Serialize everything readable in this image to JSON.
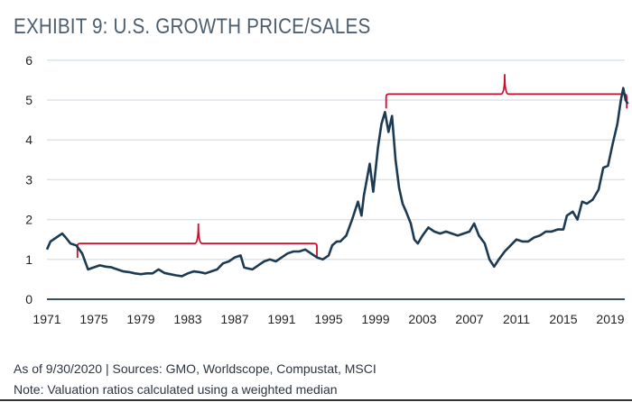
{
  "title": "EXHIBIT 9: U.S. GROWTH PRICE/SALES",
  "footer": {
    "sources": "As of 9/30/2020 | Sources: GMO, Worldscope, Compustat, MSCI",
    "note": "Note: Valuation ratios calculated using a weighted median"
  },
  "colors": {
    "line": "#1c3a52",
    "bracket": "#c8102e",
    "grid": "#dde3ea",
    "axis": "#3a4f63"
  },
  "chart_data": {
    "type": "line",
    "title": "EXHIBIT 9: U.S. GROWTH PRICE/SALES",
    "xlabel": "",
    "ylabel": "",
    "xlim": [
      1971,
      2020.5
    ],
    "ylim": [
      0,
      6
    ],
    "grid": "horizontal",
    "yticks": [
      "0",
      "1",
      "2",
      "3",
      "4",
      "5",
      "6"
    ],
    "xticks": [
      "1971",
      "1975",
      "1979",
      "1983",
      "1987",
      "1991",
      "1995",
      "1999",
      "2003",
      "2007",
      "2011",
      "2015",
      "2019"
    ],
    "series": [
      {
        "x": [
          1971.0,
          1971.3,
          1971.8,
          1972.3,
          1972.6,
          1973.0,
          1973.5,
          1974.0,
          1974.5,
          1975.0,
          1975.5,
          1976.0,
          1976.5,
          1977.0,
          1977.5,
          1978.0,
          1978.5,
          1979.0,
          1979.5,
          1980.0,
          1980.5,
          1981.0,
          1981.5,
          1982.0,
          1982.5,
          1983.0,
          1983.5,
          1984.0,
          1984.5,
          1985.0,
          1985.5,
          1986.0,
          1986.5,
          1987.0,
          1987.5,
          1987.8,
          1988.0,
          1988.5,
          1989.0,
          1989.5,
          1990.0,
          1990.5,
          1991.0,
          1991.5,
          1992.0,
          1992.5,
          1993.0,
          1993.5,
          1994.0,
          1994.5,
          1995.0,
          1995.3,
          1995.7,
          1996.0,
          1996.5,
          1997.0,
          1997.5,
          1997.8,
          1998.0,
          1998.5,
          1998.8,
          1999.2,
          1999.5,
          1999.8,
          2000.1,
          2000.4,
          2000.7,
          2001.0,
          2001.3,
          2001.6,
          2002.0,
          2002.3,
          2002.6,
          2003.0,
          2003.5,
          2004.0,
          2004.5,
          2005.0,
          2005.5,
          2006.0,
          2006.5,
          2007.0,
          2007.4,
          2007.8,
          2008.3,
          2008.7,
          2009.1,
          2009.5,
          2010.0,
          2010.5,
          2011.0,
          2011.5,
          2012.0,
          2012.5,
          2013.0,
          2013.5,
          2014.0,
          2014.5,
          2015.0,
          2015.3,
          2015.8,
          2016.2,
          2016.6,
          2017.0,
          2017.5,
          2018.0,
          2018.4,
          2018.8,
          2019.2,
          2019.6,
          2019.9,
          2020.1,
          2020.3,
          2020.5
        ],
        "values": [
          1.25,
          1.45,
          1.55,
          1.65,
          1.55,
          1.4,
          1.35,
          1.15,
          0.75,
          0.8,
          0.85,
          0.82,
          0.8,
          0.75,
          0.7,
          0.68,
          0.65,
          0.63,
          0.65,
          0.65,
          0.75,
          0.66,
          0.63,
          0.6,
          0.58,
          0.65,
          0.7,
          0.68,
          0.65,
          0.7,
          0.75,
          0.9,
          0.95,
          1.05,
          1.1,
          0.8,
          0.78,
          0.75,
          0.85,
          0.95,
          1.0,
          0.95,
          1.05,
          1.15,
          1.2,
          1.2,
          1.25,
          1.15,
          1.05,
          1.0,
          1.1,
          1.35,
          1.45,
          1.45,
          1.6,
          2.0,
          2.45,
          2.1,
          2.6,
          3.4,
          2.7,
          3.8,
          4.4,
          4.7,
          4.2,
          4.6,
          3.5,
          2.8,
          2.4,
          2.2,
          1.9,
          1.5,
          1.4,
          1.6,
          1.8,
          1.7,
          1.65,
          1.7,
          1.65,
          1.6,
          1.65,
          1.7,
          1.9,
          1.6,
          1.4,
          1.0,
          0.82,
          1.0,
          1.2,
          1.35,
          1.5,
          1.45,
          1.45,
          1.55,
          1.6,
          1.7,
          1.7,
          1.75,
          1.75,
          2.1,
          2.2,
          2.0,
          2.45,
          2.4,
          2.5,
          2.75,
          3.3,
          3.35,
          3.9,
          4.4,
          5.0,
          5.3,
          5.0,
          4.9
        ]
      }
    ],
    "annotations": [
      {
        "type": "bracket",
        "x_start": 1973.6,
        "x_end": 1994.0,
        "y": 1.4,
        "peak_x": 1983.9,
        "peak_y": 1.9
      },
      {
        "type": "bracket",
        "x_start": 1999.9,
        "x_end": 2020.4,
        "y": 5.15,
        "peak_x": 2010.0,
        "peak_y": 5.65
      }
    ]
  }
}
